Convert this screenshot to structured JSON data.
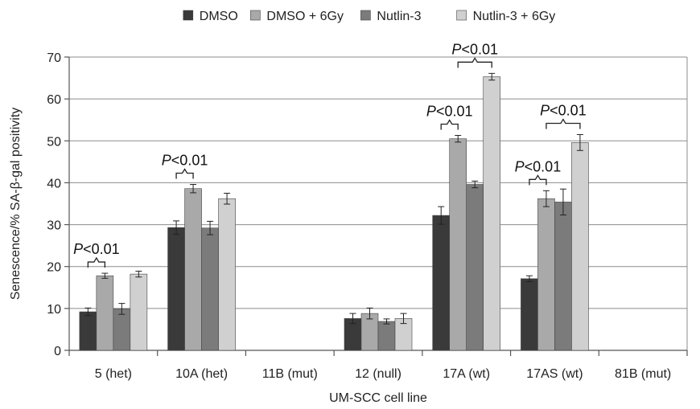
{
  "chart_data": {
    "type": "bar",
    "title": "",
    "xlabel": "UM-SCC cell line",
    "ylabel": "Senescence/% SA-β-gal positivity",
    "ylim": [
      0,
      70
    ],
    "yticks": [
      0,
      10,
      20,
      30,
      40,
      50,
      60,
      70
    ],
    "grid": true,
    "legend_position": "top",
    "categories": [
      "5 (het)",
      "10A (het)",
      "11B (mut)",
      "12 (null)",
      "17A (wt)",
      "17AS (wt)",
      "81B (mut)"
    ],
    "series": [
      {
        "name": "DMSO",
        "color": "#3a3a3a",
        "values": [
          9.2,
          29.3,
          null,
          7.6,
          32.2,
          17.1,
          null
        ],
        "errors": [
          0.9,
          1.6,
          null,
          1.2,
          2.1,
          0.7,
          null
        ]
      },
      {
        "name": "DMSO + 6Gy",
        "color": "#a9a9a9",
        "values": [
          17.8,
          38.6,
          null,
          8.8,
          50.5,
          36.2,
          null
        ],
        "errors": [
          0.6,
          1.0,
          null,
          1.3,
          0.8,
          1.9,
          null
        ]
      },
      {
        "name": "Nutlin-3",
        "color": "#7b7b7b",
        "values": [
          9.9,
          29.2,
          null,
          6.9,
          39.6,
          35.4,
          null
        ],
        "errors": [
          1.3,
          1.6,
          null,
          0.6,
          0.8,
          3.1,
          null
        ]
      },
      {
        "name": "Nutlin-3 + 6Gy",
        "color": "#d0d0d0",
        "values": [
          18.2,
          36.2,
          null,
          7.6,
          65.3,
          49.6,
          null
        ],
        "errors": [
          0.7,
          1.3,
          null,
          1.2,
          0.8,
          1.9,
          null
        ]
      }
    ],
    "annotations": [
      {
        "text_italic": "P",
        "text_rest": "<0.01",
        "category": 0,
        "from_series": 0,
        "to_series": 1
      },
      {
        "text_italic": "P",
        "text_rest": "<0.01",
        "category": 1,
        "from_series": 0,
        "to_series": 1
      },
      {
        "text_italic": "P",
        "text_rest": "<0.01",
        "category": 4,
        "from_series": 0,
        "to_series": 1
      },
      {
        "text_italic": "P",
        "text_rest": "<0.01",
        "category": 4,
        "from_series": 1,
        "to_series": 3
      },
      {
        "text_italic": "P",
        "text_rest": "<0.01",
        "category": 5,
        "from_series": 0,
        "to_series": 1
      },
      {
        "text_italic": "P",
        "text_rest": "<0.01",
        "category": 5,
        "from_series": 1,
        "to_series": 3
      }
    ]
  }
}
